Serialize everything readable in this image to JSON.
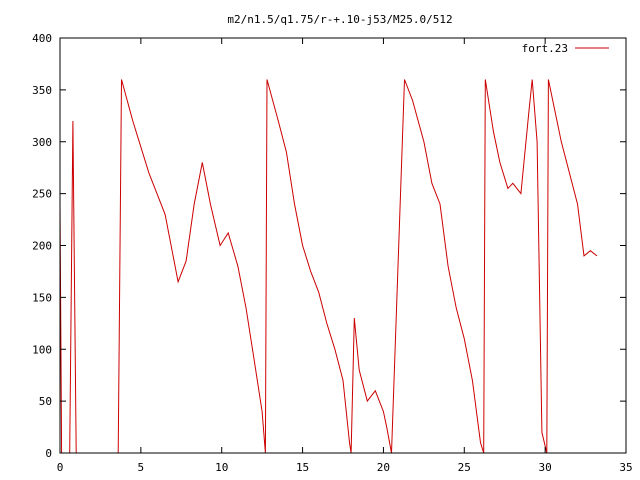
{
  "chart_data": {
    "type": "line",
    "title": "m2/n1.5/q1.75/r-+.10-j53/M25.0/512",
    "xlabel": "",
    "ylabel": "",
    "xlim": [
      0,
      35
    ],
    "ylim": [
      0,
      400
    ],
    "xticks": [
      "0",
      "5",
      "10",
      "15",
      "20",
      "25",
      "30",
      "35"
    ],
    "yticks": [
      "0",
      "50",
      "100",
      "150",
      "200",
      "250",
      "300",
      "350",
      "400"
    ],
    "grid": false,
    "legend_position": "top-right",
    "series": [
      {
        "name": "fort.23",
        "color": "#cc0000",
        "values": [
          [
            0.0,
            240
          ],
          [
            0.1,
            0
          ],
          [
            0.6,
            0
          ],
          [
            0.8,
            320
          ],
          [
            1.0,
            0
          ],
          [
            3.6,
            0
          ],
          [
            3.8,
            360
          ],
          [
            4.5,
            320
          ],
          [
            5.5,
            270
          ],
          [
            6.5,
            230
          ],
          [
            7.3,
            165
          ],
          [
            7.8,
            185
          ],
          [
            8.3,
            240
          ],
          [
            8.8,
            280
          ],
          [
            9.3,
            240
          ],
          [
            9.9,
            200
          ],
          [
            10.4,
            212
          ],
          [
            11.0,
            180
          ],
          [
            11.5,
            140
          ],
          [
            12.0,
            90
          ],
          [
            12.5,
            40
          ],
          [
            12.7,
            0
          ],
          [
            12.8,
            360
          ],
          [
            13.5,
            320
          ],
          [
            14.0,
            290
          ],
          [
            14.5,
            240
          ],
          [
            15.0,
            200
          ],
          [
            15.5,
            175
          ],
          [
            16.0,
            155
          ],
          [
            16.5,
            125
          ],
          [
            17.0,
            100
          ],
          [
            17.5,
            70
          ],
          [
            17.9,
            10
          ],
          [
            18.0,
            0
          ],
          [
            18.2,
            130
          ],
          [
            18.5,
            80
          ],
          [
            19.0,
            50
          ],
          [
            19.5,
            60
          ],
          [
            20.0,
            40
          ],
          [
            20.2,
            25
          ],
          [
            20.5,
            0
          ],
          [
            21.3,
            360
          ],
          [
            21.8,
            340
          ],
          [
            22.5,
            300
          ],
          [
            23.0,
            260
          ],
          [
            23.5,
            240
          ],
          [
            24.0,
            180
          ],
          [
            24.5,
            140
          ],
          [
            25.0,
            110
          ],
          [
            25.5,
            70
          ],
          [
            26.0,
            10
          ],
          [
            26.2,
            0
          ],
          [
            26.3,
            360
          ],
          [
            26.8,
            310
          ],
          [
            27.2,
            280
          ],
          [
            27.7,
            255
          ],
          [
            28.0,
            260
          ],
          [
            28.5,
            250
          ],
          [
            29.0,
            330
          ],
          [
            29.2,
            360
          ],
          [
            29.5,
            300
          ],
          [
            29.8,
            20
          ],
          [
            30.1,
            0
          ],
          [
            30.2,
            360
          ],
          [
            31.0,
            300
          ],
          [
            32.0,
            240
          ],
          [
            32.4,
            190
          ],
          [
            32.8,
            195
          ],
          [
            33.2,
            190
          ]
        ]
      }
    ]
  }
}
